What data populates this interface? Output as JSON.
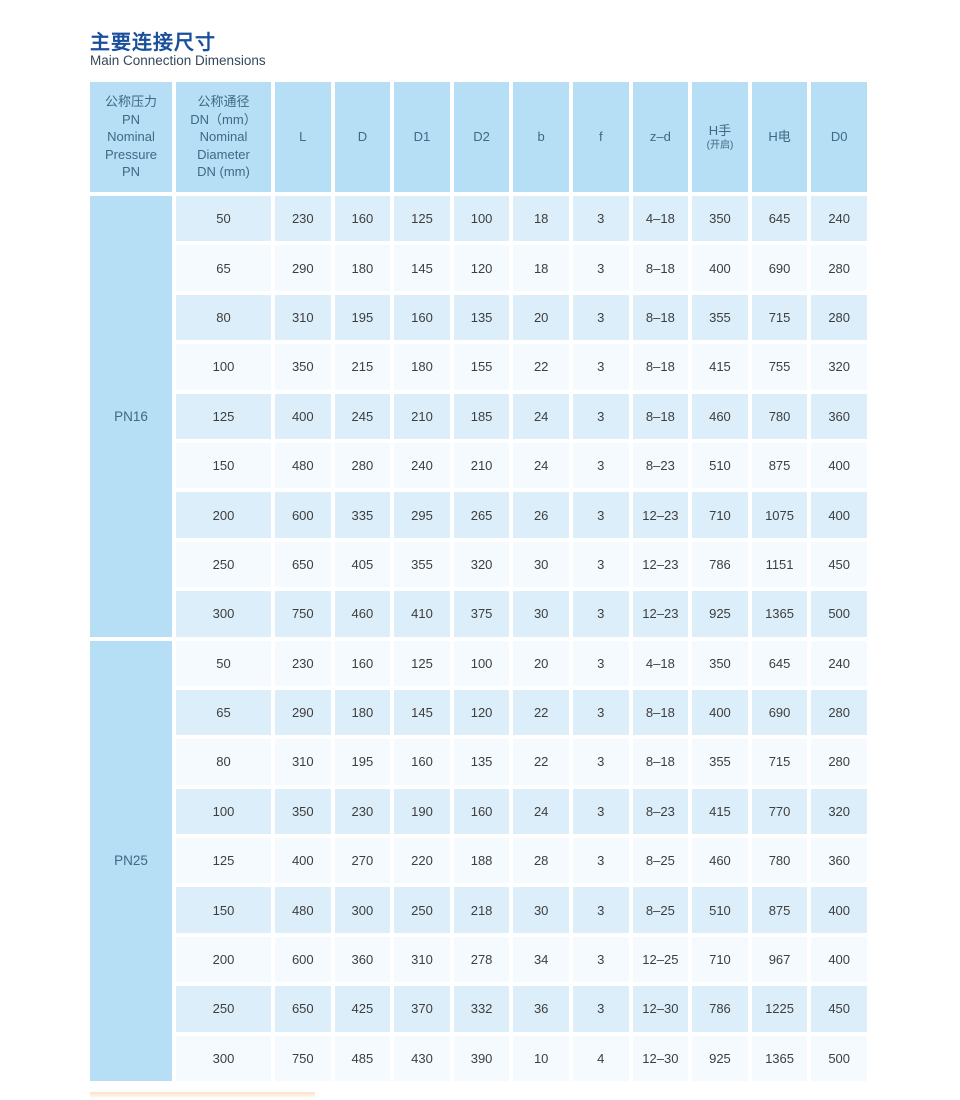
{
  "header": {
    "title_zh": "主要连接尺寸",
    "title_en": "Main Connection Dimensions"
  },
  "colors": {
    "title_blue": "#1a4f9c",
    "subtitle_slate": "#33485c",
    "header_cell_blue": "#b6def4",
    "header_text": "#3d6a87",
    "row_blue": "#dceef9",
    "row_white": "#f4fafd",
    "data_text": "#3e3e3e"
  },
  "table": {
    "columns": [
      {
        "key": "pn",
        "lines": [
          "公称压力",
          "PN",
          "Nominal",
          "Pressure",
          "PN"
        ],
        "small_line_index": -1
      },
      {
        "key": "dn",
        "lines": [
          "公称通径",
          "DN（mm）",
          "Nominal",
          "Diameter",
          "DN (mm)"
        ],
        "small_line_index": -1
      },
      {
        "key": "L",
        "lines": [
          "L"
        ],
        "small_line_index": -1
      },
      {
        "key": "D",
        "lines": [
          "D"
        ],
        "small_line_index": -1
      },
      {
        "key": "D1",
        "lines": [
          "D1"
        ],
        "small_line_index": -1
      },
      {
        "key": "D2",
        "lines": [
          "D2"
        ],
        "small_line_index": -1
      },
      {
        "key": "b",
        "lines": [
          "b"
        ],
        "small_line_index": -1
      },
      {
        "key": "f",
        "lines": [
          "f"
        ],
        "small_line_index": -1
      },
      {
        "key": "z-d",
        "lines": [
          "z–d"
        ],
        "small_line_index": -1
      },
      {
        "key": "H-hand",
        "lines": [
          "H手",
          "(开启)"
        ],
        "small_line_index": 1
      },
      {
        "key": "H-electric",
        "lines": [
          "H电"
        ],
        "small_line_index": -1
      },
      {
        "key": "D0",
        "lines": [
          "D0"
        ],
        "small_line_index": -1
      }
    ],
    "groups": [
      {
        "label": "PN16",
        "rows": [
          [
            "50",
            "230",
            "160",
            "125",
            "100",
            "18",
            "3",
            "4–18",
            "350",
            "645",
            "240"
          ],
          [
            "65",
            "290",
            "180",
            "145",
            "120",
            "18",
            "3",
            "8–18",
            "400",
            "690",
            "280"
          ],
          [
            "80",
            "310",
            "195",
            "160",
            "135",
            "20",
            "3",
            "8–18",
            "355",
            "715",
            "280"
          ],
          [
            "100",
            "350",
            "215",
            "180",
            "155",
            "22",
            "3",
            "8–18",
            "415",
            "755",
            "320"
          ],
          [
            "125",
            "400",
            "245",
            "210",
            "185",
            "24",
            "3",
            "8–18",
            "460",
            "780",
            "360"
          ],
          [
            "150",
            "480",
            "280",
            "240",
            "210",
            "24",
            "3",
            "8–23",
            "510",
            "875",
            "400"
          ],
          [
            "200",
            "600",
            "335",
            "295",
            "265",
            "26",
            "3",
            "12–23",
            "710",
            "1075",
            "400"
          ],
          [
            "250",
            "650",
            "405",
            "355",
            "320",
            "30",
            "3",
            "12–23",
            "786",
            "1151",
            "450"
          ],
          [
            "300",
            "750",
            "460",
            "410",
            "375",
            "30",
            "3",
            "12–23",
            "925",
            "1365",
            "500"
          ]
        ]
      },
      {
        "label": "PN25",
        "rows": [
          [
            "50",
            "230",
            "160",
            "125",
            "100",
            "20",
            "3",
            "4–18",
            "350",
            "645",
            "240"
          ],
          [
            "65",
            "290",
            "180",
            "145",
            "120",
            "22",
            "3",
            "8–18",
            "400",
            "690",
            "280"
          ],
          [
            "80",
            "310",
            "195",
            "160",
            "135",
            "22",
            "3",
            "8–18",
            "355",
            "715",
            "280"
          ],
          [
            "100",
            "350",
            "230",
            "190",
            "160",
            "24",
            "3",
            "8–23",
            "415",
            "770",
            "320"
          ],
          [
            "125",
            "400",
            "270",
            "220",
            "188",
            "28",
            "3",
            "8–25",
            "460",
            "780",
            "360"
          ],
          [
            "150",
            "480",
            "300",
            "250",
            "218",
            "30",
            "3",
            "8–25",
            "510",
            "875",
            "400"
          ],
          [
            "200",
            "600",
            "360",
            "310",
            "278",
            "34",
            "3",
            "12–25",
            "710",
            "967",
            "400"
          ],
          [
            "250",
            "650",
            "425",
            "370",
            "332",
            "36",
            "3",
            "12–30",
            "786",
            "1225",
            "450"
          ],
          [
            "300",
            "750",
            "485",
            "430",
            "390",
            "10",
            "4",
            "12–30",
            "925",
            "1365",
            "500"
          ]
        ]
      }
    ]
  }
}
